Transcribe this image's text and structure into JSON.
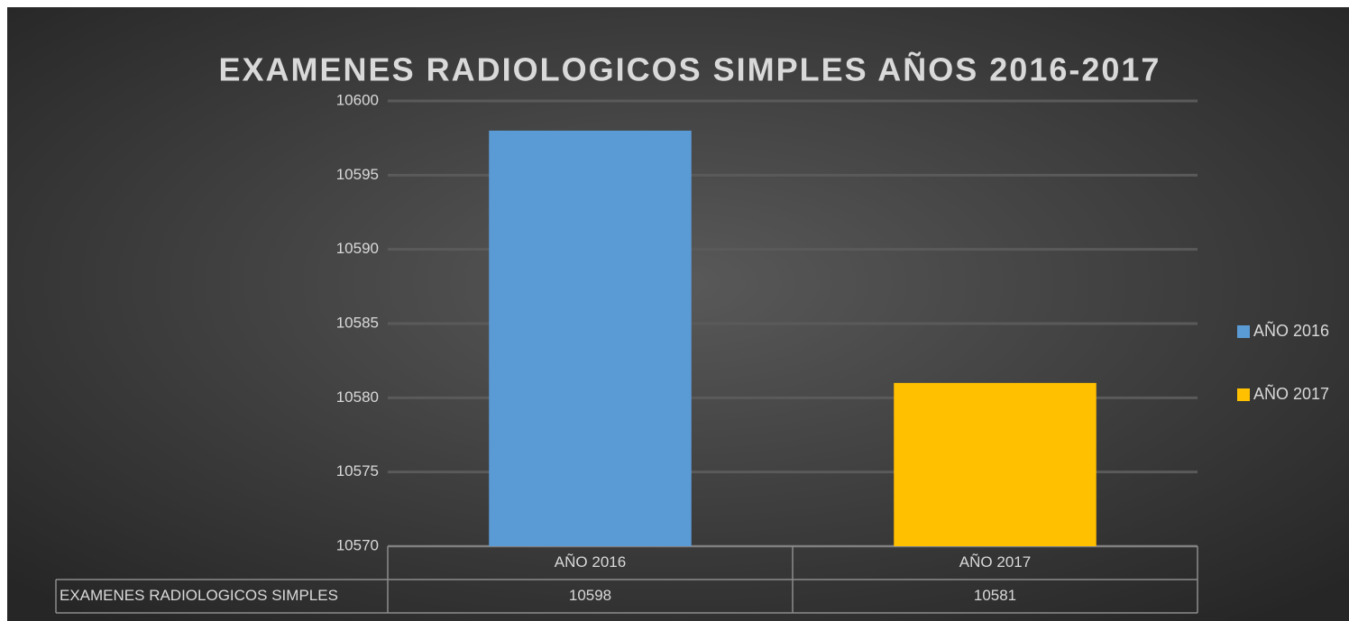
{
  "chart_data": {
    "type": "bar",
    "title": "EXAMENES RADIOLOGICOS SIMPLES AÑOS 2016-2017",
    "categories": [
      "AÑO 2016",
      "AÑO 2017"
    ],
    "series": [
      {
        "name": "EXAMENES RADIOLOGICOS SIMPLES",
        "values": [
          10598,
          10581
        ],
        "colors": [
          "#5b9bd5",
          "#ffc000"
        ]
      }
    ],
    "ylim": [
      10570,
      10600
    ],
    "yticks": [
      10570,
      10575,
      10580,
      10585,
      10590,
      10595,
      10600
    ],
    "grid": true,
    "legend": "right",
    "data_table": true
  }
}
